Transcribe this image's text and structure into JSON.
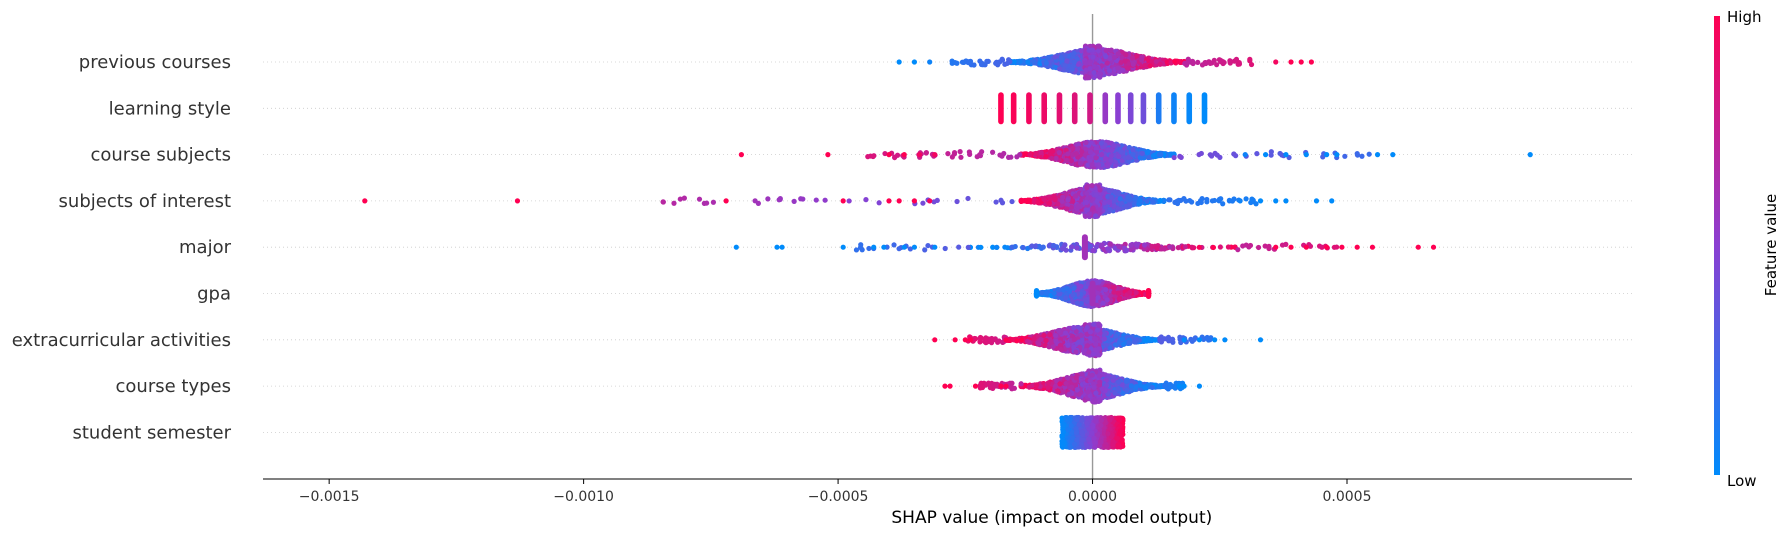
{
  "chart_data": {
    "type": "scatter",
    "subtype": "shap-beeswarm",
    "title": "",
    "xlabel": "SHAP value (impact on model output)",
    "xlim": [
      -0.00163,
      0.00106
    ],
    "x_ticks": [
      {
        "value": -0.0015,
        "label": "−0.0015"
      },
      {
        "value": -0.001,
        "label": "−0.0010"
      },
      {
        "value": -0.0005,
        "label": "−0.0005"
      },
      {
        "value": 0.0,
        "label": "0.0000"
      },
      {
        "value": 0.0005,
        "label": "0.0005"
      }
    ],
    "grid": false,
    "colorbar": {
      "title": "Feature value",
      "high_label": "High",
      "low_label": "Low",
      "low_color": "#008bfb",
      "high_color": "#ff0052"
    },
    "features": [
      {
        "name": "previous courses",
        "min": -0.00038,
        "max": 0.00043,
        "core": [
          -0.00016,
          0.00018
        ],
        "trend": "increasing",
        "center_cluster": true,
        "outliers": [
          {
            "x": -0.00038,
            "v": 0.0
          },
          {
            "x": -0.00035,
            "v": 0.0
          },
          {
            "x": -0.00032,
            "v": 0.05
          },
          {
            "x": 0.00036,
            "v": 0.95
          },
          {
            "x": 0.00039,
            "v": 1.0
          },
          {
            "x": 0.00041,
            "v": 1.0
          },
          {
            "x": 0.00043,
            "v": 1.0
          }
        ]
      },
      {
        "name": "learning style",
        "bars": [
          {
            "x": -0.00018,
            "v": 1.0
          },
          {
            "x": -0.000155,
            "v": 0.98
          },
          {
            "x": -0.000125,
            "v": 0.95
          },
          {
            "x": -9.5e-05,
            "v": 0.92
          },
          {
            "x": -6.5e-05,
            "v": 0.88
          },
          {
            "x": -3.5e-05,
            "v": 0.85
          },
          {
            "x": -5e-06,
            "v": 0.8
          },
          {
            "x": 2.5e-05,
            "v": 0.55
          },
          {
            "x": 5e-05,
            "v": 0.5
          },
          {
            "x": 7.5e-05,
            "v": 0.45
          },
          {
            "x": 0.0001,
            "v": 0.4
          },
          {
            "x": 0.00013,
            "v": 0.1
          },
          {
            "x": 0.00016,
            "v": 0.05
          },
          {
            "x": 0.00019,
            "v": 0.02
          },
          {
            "x": 0.00022,
            "v": 0.0
          }
        ]
      },
      {
        "name": "course subjects",
        "min": -0.00069,
        "max": 0.00086,
        "core": [
          -0.00014,
          0.00016
        ],
        "trend": "decreasing",
        "outliers": [
          {
            "x": -0.00069,
            "v": 1.0
          },
          {
            "x": -0.00052,
            "v": 1.0
          },
          {
            "x": -0.0004,
            "v": 1.0
          },
          {
            "x": -0.00037,
            "v": 1.0
          },
          {
            "x": -0.00034,
            "v": 0.95
          },
          {
            "x": -0.00031,
            "v": 0.95
          },
          {
            "x": 0.0003,
            "v": 0.05
          },
          {
            "x": 0.00034,
            "v": 0.0
          },
          {
            "x": 0.00038,
            "v": 0.0
          },
          {
            "x": 0.00042,
            "v": 0.0
          },
          {
            "x": 0.00046,
            "v": 0.0
          },
          {
            "x": 0.00048,
            "v": 0.0
          },
          {
            "x": 0.00056,
            "v": 0.0
          },
          {
            "x": 0.00059,
            "v": 0.0
          },
          {
            "x": 0.00086,
            "v": 0.0
          }
        ]
      },
      {
        "name": "subjects of interest",
        "min": -0.00143,
        "max": 0.00047,
        "core": [
          -0.00014,
          0.00014
        ],
        "trend": "decreasing",
        "center_cluster": true,
        "outliers": [
          {
            "x": -0.00143,
            "v": 1.0
          },
          {
            "x": -0.00113,
            "v": 1.0
          },
          {
            "x": -0.00072,
            "v": 1.0
          },
          {
            "x": -0.00049,
            "v": 1.0
          },
          {
            "x": -0.0004,
            "v": 1.0
          },
          {
            "x": -0.00038,
            "v": 1.0
          },
          {
            "x": -0.00035,
            "v": 1.0
          },
          {
            "x": -0.00032,
            "v": 0.95
          },
          {
            "x": 0.00029,
            "v": 0.05
          },
          {
            "x": 0.00033,
            "v": 0.0
          },
          {
            "x": 0.00036,
            "v": 0.0
          },
          {
            "x": 0.00038,
            "v": 0.0
          },
          {
            "x": 0.00044,
            "v": 0.0
          },
          {
            "x": 0.00047,
            "v": 0.0
          }
        ]
      },
      {
        "name": "major",
        "min": -0.0007,
        "max": 0.00067,
        "core": [
          -0.00024,
          0.00028
        ],
        "trend": "increasing",
        "sparse": true,
        "center_bar": {
          "x": -1.5e-05,
          "v": 0.6
        },
        "outliers": [
          {
            "x": -0.0007,
            "v": 0.0
          },
          {
            "x": -0.00062,
            "v": 0.0
          },
          {
            "x": -0.00061,
            "v": 0.0
          },
          {
            "x": -0.00049,
            "v": 0.0
          },
          {
            "x": -0.00043,
            "v": 0.0
          },
          {
            "x": -0.00041,
            "v": 0.0
          },
          {
            "x": -0.00037,
            "v": 0.0
          },
          {
            "x": -0.00035,
            "v": 0.0
          },
          {
            "x": -0.00031,
            "v": 0.0
          },
          {
            "x": 0.00036,
            "v": 1.0
          },
          {
            "x": 0.00039,
            "v": 1.0
          },
          {
            "x": 0.00042,
            "v": 1.0
          },
          {
            "x": 0.00046,
            "v": 1.0
          },
          {
            "x": 0.00049,
            "v": 1.0
          },
          {
            "x": 0.00052,
            "v": 1.0
          },
          {
            "x": 0.00055,
            "v": 1.0
          },
          {
            "x": 0.00064,
            "v": 1.0
          },
          {
            "x": 0.00067,
            "v": 1.0
          }
        ]
      },
      {
        "name": "gpa",
        "min": -0.00011,
        "max": 0.00011,
        "core": [
          -0.00011,
          0.00011
        ],
        "trend": "increasing",
        "center_bar": {
          "x": 0.0,
          "v": 0.6
        },
        "outliers": []
      },
      {
        "name": "extracurricular activities",
        "min": -0.00031,
        "max": 0.00033,
        "core": [
          -0.00017,
          0.00013
        ],
        "trend": "decreasing",
        "center_cluster": true,
        "outliers": [
          {
            "x": -0.00031,
            "v": 1.0
          },
          {
            "x": -0.00027,
            "v": 1.0
          },
          {
            "x": -0.00025,
            "v": 1.0
          },
          {
            "x": -0.00024,
            "v": 1.0
          },
          {
            "x": -0.00017,
            "v": 1.0
          },
          {
            "x": 0.00018,
            "v": 0.0
          },
          {
            "x": 0.00021,
            "v": 0.0
          },
          {
            "x": 0.00024,
            "v": 0.0
          },
          {
            "x": 0.00026,
            "v": 0.0
          },
          {
            "x": 0.00033,
            "v": 0.0
          }
        ]
      },
      {
        "name": "course types",
        "min": -0.00029,
        "max": 0.00021,
        "core": [
          -0.00014,
          0.00014
        ],
        "trend": "decreasing",
        "center_cluster": true,
        "outliers": [
          {
            "x": -0.00029,
            "v": 1.0
          },
          {
            "x": -0.00028,
            "v": 1.0
          },
          {
            "x": -0.00023,
            "v": 1.0
          },
          {
            "x": -0.00018,
            "v": 1.0
          },
          {
            "x": -0.00017,
            "v": 1.0
          },
          {
            "x": 0.00017,
            "v": 0.0
          },
          {
            "x": 0.00018,
            "v": 0.0
          },
          {
            "x": 0.00021,
            "v": 0.0
          }
        ]
      },
      {
        "name": "student semester",
        "min": -6e-05,
        "max": 6e-05,
        "core": [
          -6e-05,
          6e-05
        ],
        "trend": "increasing",
        "dense_block": true,
        "outliers": []
      }
    ]
  }
}
